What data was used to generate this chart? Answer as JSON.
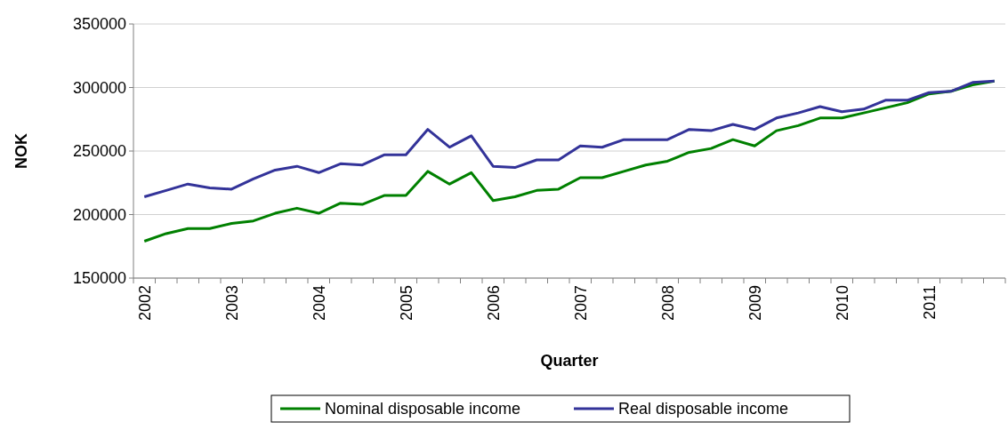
{
  "chart_data": {
    "type": "line",
    "xlabel": "Quarter",
    "ylabel": "NOK",
    "categories": [
      "2002",
      null,
      null,
      null,
      "2003",
      null,
      null,
      null,
      "2004",
      null,
      null,
      null,
      "2005",
      null,
      null,
      null,
      "2006",
      null,
      null,
      null,
      "2007",
      null,
      null,
      null,
      "2008",
      null,
      null,
      null,
      "2009",
      null,
      null,
      null,
      "2010",
      null,
      null,
      null,
      "2011",
      null,
      null,
      null
    ],
    "series": [
      {
        "name": "Nominal disposable income",
        "color": "#008000",
        "values": [
          179000,
          185000,
          189000,
          189000,
          193000,
          195000,
          201000,
          205000,
          201000,
          209000,
          208000,
          215000,
          215000,
          234000,
          224000,
          233000,
          211000,
          214000,
          219000,
          220000,
          229000,
          229000,
          234000,
          239000,
          242000,
          249000,
          252000,
          259000,
          254000,
          266000,
          270000,
          276000,
          276000,
          280000,
          284000,
          288000,
          295000,
          297000,
          302000,
          305000
        ]
      },
      {
        "name": "Real disposable income",
        "color": "#333399",
        "values": [
          214000,
          219000,
          224000,
          221000,
          220000,
          228000,
          235000,
          238000,
          233000,
          240000,
          239000,
          247000,
          247000,
          267000,
          253000,
          262000,
          238000,
          237000,
          243000,
          243000,
          254000,
          253000,
          259000,
          259000,
          259000,
          267000,
          266000,
          271000,
          267000,
          276000,
          280000,
          285000,
          281000,
          283000,
          290000,
          290000,
          296000,
          297000,
          304000,
          305000
        ]
      }
    ],
    "ylim": [
      150000,
      350000
    ],
    "yticks": [
      150000,
      200000,
      250000,
      300000,
      350000
    ],
    "grid": "y",
    "legend": "bottom",
    "marker": "none",
    "line_style": "solid"
  }
}
